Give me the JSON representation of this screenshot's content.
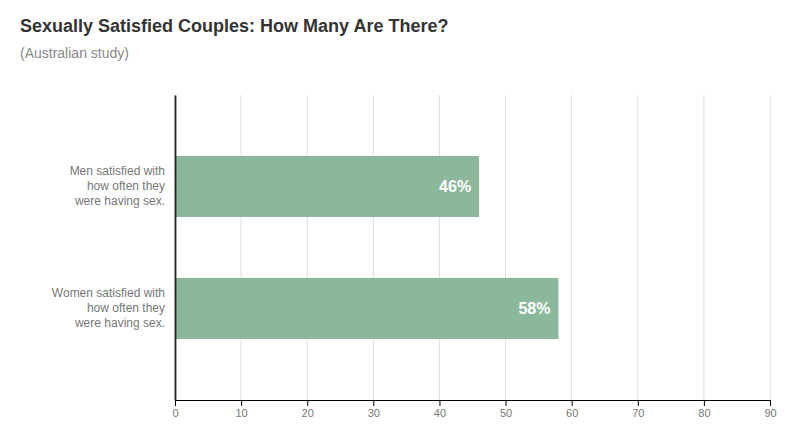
{
  "chart_data": {
    "type": "bar",
    "orientation": "horizontal",
    "title": "Sexually Satisfied Couples: How Many Are There?",
    "subtitle": "(Australian study)",
    "categories": [
      "Men satisfied with\nhow often they\nwere having sex.",
      "Women satisfied with\nhow often they\nwere having sex."
    ],
    "values": [
      46,
      58
    ],
    "value_labels": [
      "46%",
      "58%"
    ],
    "data_labels": true,
    "color": "#8bb89a",
    "xlim": [
      0,
      90
    ],
    "xticks": [
      0,
      10,
      20,
      30,
      40,
      50,
      60,
      70,
      80,
      90
    ],
    "grid": true
  }
}
